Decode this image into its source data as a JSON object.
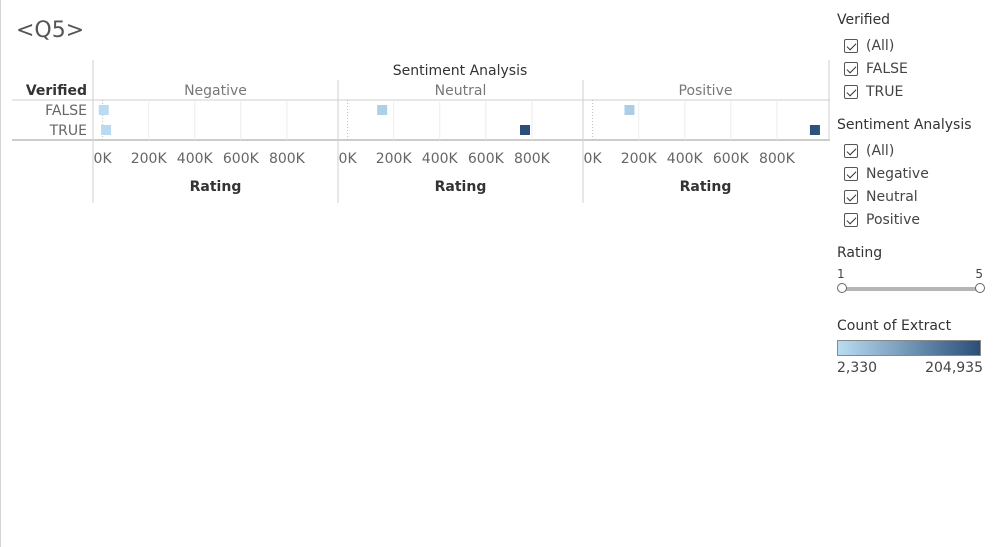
{
  "page_title": "<Q5>",
  "chart_data": {
    "type": "heatmap",
    "title": "Sentiment Analysis",
    "row_header": "Verified",
    "rows": [
      "FALSE",
      "TRUE"
    ],
    "columns": [
      "Negative",
      "Neutral",
      "Positive"
    ],
    "xlabel": "Rating",
    "xlim": [
      -20000,
      1000000
    ],
    "xticks": [
      0,
      200000,
      400000,
      600000,
      800000
    ],
    "xtick_labels": [
      "0K",
      "200K",
      "400K",
      "600K",
      "800K"
    ],
    "grid": true,
    "color_scale": {
      "min": 2330,
      "max": 204935,
      "low": "#b9dcf2",
      "high": "#2a4f78"
    },
    "marks": [
      {
        "row": "FALSE",
        "column": "Negative",
        "x": 5000,
        "count": 2330
      },
      {
        "row": "TRUE",
        "column": "Negative",
        "x": 15000,
        "count": 4000
      },
      {
        "row": "FALSE",
        "column": "Neutral",
        "x": 150000,
        "count": 20000
      },
      {
        "row": "TRUE",
        "column": "Neutral",
        "x": 770000,
        "count": 204935
      },
      {
        "row": "FALSE",
        "column": "Positive",
        "x": 160000,
        "count": 22000
      },
      {
        "row": "TRUE",
        "column": "Positive",
        "x": 965000,
        "count": 200000
      }
    ]
  },
  "filters": {
    "verified": {
      "title": "Verified",
      "items": [
        "(All)",
        "FALSE",
        "TRUE"
      ]
    },
    "sentiment": {
      "title": "Sentiment Analysis",
      "items": [
        "(All)",
        "Negative",
        "Neutral",
        "Positive"
      ]
    },
    "rating": {
      "title": "Rating",
      "min_label": "1",
      "max_label": "5"
    }
  },
  "legend": {
    "title": "Count of Extract",
    "min_label": "2,330",
    "max_label": "204,935"
  }
}
